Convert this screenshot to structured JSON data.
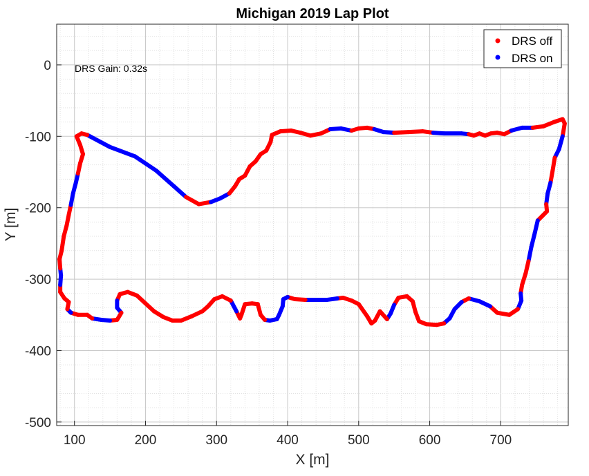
{
  "chart_data": {
    "type": "scatter",
    "title": "Michigan 2019 Lap Plot",
    "xlabel": "X [m]",
    "ylabel": "Y [m]",
    "xlim": [
      75,
      795
    ],
    "ylim": [
      -505,
      57
    ],
    "xticks": [
      100,
      200,
      300,
      400,
      500,
      600,
      700
    ],
    "yticks": [
      0,
      -100,
      -200,
      -300,
      -400,
      -500
    ],
    "grid": "major and minor",
    "legend_position": "top-right",
    "annotation": "DRS Gain: 0.32s",
    "colors": {
      "off": "#ff0000",
      "on": "#0000ff"
    },
    "series": [
      {
        "name": "DRS off",
        "color": "#ff0000"
      },
      {
        "name": "DRS on",
        "color": "#0000ff"
      }
    ],
    "track": [
      {
        "x": 118,
        "y": -98,
        "drs": "on"
      },
      {
        "x": 150,
        "y": -115,
        "drs": "on"
      },
      {
        "x": 185,
        "y": -128,
        "drs": "on"
      },
      {
        "x": 215,
        "y": -148,
        "drs": "on"
      },
      {
        "x": 240,
        "y": -170,
        "drs": "on"
      },
      {
        "x": 257,
        "y": -185,
        "drs": "off"
      },
      {
        "x": 275,
        "y": -195,
        "drs": "off"
      },
      {
        "x": 292,
        "y": -192,
        "drs": "on"
      },
      {
        "x": 305,
        "y": -187,
        "drs": "on"
      },
      {
        "x": 318,
        "y": -180,
        "drs": "off"
      },
      {
        "x": 326,
        "y": -170,
        "drs": "off"
      },
      {
        "x": 332,
        "y": -160,
        "drs": "off"
      },
      {
        "x": 340,
        "y": -155,
        "drs": "off"
      },
      {
        "x": 347,
        "y": -142,
        "drs": "off"
      },
      {
        "x": 355,
        "y": -135,
        "drs": "off"
      },
      {
        "x": 362,
        "y": -125,
        "drs": "off"
      },
      {
        "x": 370,
        "y": -120,
        "drs": "off"
      },
      {
        "x": 376,
        "y": -108,
        "drs": "off"
      },
      {
        "x": 378,
        "y": -98,
        "drs": "off"
      },
      {
        "x": 390,
        "y": -93,
        "drs": "off"
      },
      {
        "x": 405,
        "y": -92,
        "drs": "off"
      },
      {
        "x": 418,
        "y": -95,
        "drs": "off"
      },
      {
        "x": 432,
        "y": -99,
        "drs": "off"
      },
      {
        "x": 447,
        "y": -96,
        "drs": "off"
      },
      {
        "x": 460,
        "y": -90,
        "drs": "on"
      },
      {
        "x": 475,
        "y": -89,
        "drs": "on"
      },
      {
        "x": 490,
        "y": -92,
        "drs": "off"
      },
      {
        "x": 500,
        "y": -89,
        "drs": "off"
      },
      {
        "x": 512,
        "y": -88,
        "drs": "off"
      },
      {
        "x": 522,
        "y": -90,
        "drs": "on"
      },
      {
        "x": 535,
        "y": -94,
        "drs": "on"
      },
      {
        "x": 550,
        "y": -95,
        "drs": "off"
      },
      {
        "x": 570,
        "y": -94,
        "drs": "off"
      },
      {
        "x": 590,
        "y": -93,
        "drs": "off"
      },
      {
        "x": 605,
        "y": -95,
        "drs": "on"
      },
      {
        "x": 620,
        "y": -96,
        "drs": "on"
      },
      {
        "x": 645,
        "y": -96,
        "drs": "on"
      },
      {
        "x": 655,
        "y": -97,
        "drs": "off"
      },
      {
        "x": 662,
        "y": -99,
        "drs": "off"
      },
      {
        "x": 670,
        "y": -96,
        "drs": "off"
      },
      {
        "x": 678,
        "y": -99,
        "drs": "off"
      },
      {
        "x": 686,
        "y": -96,
        "drs": "off"
      },
      {
        "x": 695,
        "y": -95,
        "drs": "off"
      },
      {
        "x": 705,
        "y": -97,
        "drs": "off"
      },
      {
        "x": 715,
        "y": -92,
        "drs": "on"
      },
      {
        "x": 730,
        "y": -88,
        "drs": "on"
      },
      {
        "x": 745,
        "y": -88,
        "drs": "off"
      },
      {
        "x": 760,
        "y": -86,
        "drs": "off"
      },
      {
        "x": 775,
        "y": -80,
        "drs": "off"
      },
      {
        "x": 787,
        "y": -76,
        "drs": "off"
      },
      {
        "x": 790,
        "y": -82,
        "drs": "off"
      },
      {
        "x": 787,
        "y": -100,
        "drs": "on"
      },
      {
        "x": 782,
        "y": -118,
        "drs": "on"
      },
      {
        "x": 776,
        "y": -130,
        "drs": "off"
      },
      {
        "x": 773,
        "y": -148,
        "drs": "off"
      },
      {
        "x": 770,
        "y": -165,
        "drs": "on"
      },
      {
        "x": 766,
        "y": -180,
        "drs": "on"
      },
      {
        "x": 764,
        "y": -195,
        "drs": "off"
      },
      {
        "x": 765,
        "y": -205,
        "drs": "off"
      },
      {
        "x": 758,
        "y": -212,
        "drs": "off"
      },
      {
        "x": 752,
        "y": -218,
        "drs": "on"
      },
      {
        "x": 748,
        "y": -235,
        "drs": "on"
      },
      {
        "x": 743,
        "y": -255,
        "drs": "on"
      },
      {
        "x": 739,
        "y": -275,
        "drs": "off"
      },
      {
        "x": 735,
        "y": -292,
        "drs": "off"
      },
      {
        "x": 730,
        "y": -308,
        "drs": "off"
      },
      {
        "x": 728,
        "y": -320,
        "drs": "on"
      },
      {
        "x": 729,
        "y": -330,
        "drs": "on"
      },
      {
        "x": 724,
        "y": -342,
        "drs": "off"
      },
      {
        "x": 712,
        "y": -350,
        "drs": "off"
      },
      {
        "x": 695,
        "y": -347,
        "drs": "off"
      },
      {
        "x": 685,
        "y": -338,
        "drs": "on"
      },
      {
        "x": 670,
        "y": -331,
        "drs": "on"
      },
      {
        "x": 655,
        "y": -327,
        "drs": "off"
      },
      {
        "x": 645,
        "y": -332,
        "drs": "on"
      },
      {
        "x": 635,
        "y": -342,
        "drs": "on"
      },
      {
        "x": 628,
        "y": -355,
        "drs": "on"
      },
      {
        "x": 620,
        "y": -362,
        "drs": "off"
      },
      {
        "x": 610,
        "y": -364,
        "drs": "off"
      },
      {
        "x": 595,
        "y": -363,
        "drs": "off"
      },
      {
        "x": 585,
        "y": -359,
        "drs": "off"
      },
      {
        "x": 580,
        "y": -346,
        "drs": "off"
      },
      {
        "x": 576,
        "y": -331,
        "drs": "off"
      },
      {
        "x": 568,
        "y": -324,
        "drs": "off"
      },
      {
        "x": 556,
        "y": -326,
        "drs": "off"
      },
      {
        "x": 550,
        "y": -336,
        "drs": "on"
      },
      {
        "x": 545,
        "y": -348,
        "drs": "on"
      },
      {
        "x": 540,
        "y": -356,
        "drs": "off"
      },
      {
        "x": 530,
        "y": -345,
        "drs": "off"
      },
      {
        "x": 523,
        "y": -358,
        "drs": "off"
      },
      {
        "x": 518,
        "y": -362,
        "drs": "off"
      },
      {
        "x": 512,
        "y": -352,
        "drs": "off"
      },
      {
        "x": 500,
        "y": -335,
        "drs": "off"
      },
      {
        "x": 490,
        "y": -330,
        "drs": "off"
      },
      {
        "x": 478,
        "y": -326,
        "drs": "off"
      },
      {
        "x": 470,
        "y": -327,
        "drs": "on"
      },
      {
        "x": 455,
        "y": -329,
        "drs": "on"
      },
      {
        "x": 438,
        "y": -329,
        "drs": "on"
      },
      {
        "x": 425,
        "y": -329,
        "drs": "off"
      },
      {
        "x": 410,
        "y": -328,
        "drs": "off"
      },
      {
        "x": 400,
        "y": -325,
        "drs": "on"
      },
      {
        "x": 394,
        "y": -328,
        "drs": "on"
      },
      {
        "x": 393,
        "y": -338,
        "drs": "on"
      },
      {
        "x": 388,
        "y": -350,
        "drs": "on"
      },
      {
        "x": 385,
        "y": -356,
        "drs": "on"
      },
      {
        "x": 375,
        "y": -358,
        "drs": "on"
      },
      {
        "x": 368,
        "y": -357,
        "drs": "off"
      },
      {
        "x": 362,
        "y": -350,
        "drs": "off"
      },
      {
        "x": 358,
        "y": -335,
        "drs": "off"
      },
      {
        "x": 350,
        "y": -334,
        "drs": "off"
      },
      {
        "x": 340,
        "y": -335,
        "drs": "off"
      },
      {
        "x": 335,
        "y": -350,
        "drs": "off"
      },
      {
        "x": 333,
        "y": -355,
        "drs": "off"
      },
      {
        "x": 328,
        "y": -345,
        "drs": "on"
      },
      {
        "x": 320,
        "y": -330,
        "drs": "off"
      },
      {
        "x": 308,
        "y": -324,
        "drs": "off"
      },
      {
        "x": 297,
        "y": -328,
        "drs": "off"
      },
      {
        "x": 288,
        "y": -338,
        "drs": "off"
      },
      {
        "x": 280,
        "y": -345,
        "drs": "off"
      },
      {
        "x": 265,
        "y": -352,
        "drs": "off"
      },
      {
        "x": 250,
        "y": -358,
        "drs": "off"
      },
      {
        "x": 238,
        "y": -358,
        "drs": "off"
      },
      {
        "x": 225,
        "y": -353,
        "drs": "off"
      },
      {
        "x": 212,
        "y": -345,
        "drs": "off"
      },
      {
        "x": 200,
        "y": -334,
        "drs": "off"
      },
      {
        "x": 188,
        "y": -323,
        "drs": "off"
      },
      {
        "x": 175,
        "y": -318,
        "drs": "off"
      },
      {
        "x": 164,
        "y": -321,
        "drs": "off"
      },
      {
        "x": 160,
        "y": -330,
        "drs": "on"
      },
      {
        "x": 160,
        "y": -340,
        "drs": "on"
      },
      {
        "x": 166,
        "y": -347,
        "drs": "off"
      },
      {
        "x": 160,
        "y": -357,
        "drs": "off"
      },
      {
        "x": 150,
        "y": -358,
        "drs": "on"
      },
      {
        "x": 138,
        "y": -357,
        "drs": "on"
      },
      {
        "x": 125,
        "y": -355,
        "drs": "off"
      },
      {
        "x": 118,
        "y": -350,
        "drs": "off"
      },
      {
        "x": 105,
        "y": -350,
        "drs": "off"
      },
      {
        "x": 95,
        "y": -347,
        "drs": "on"
      },
      {
        "x": 90,
        "y": -342,
        "drs": "off"
      },
      {
        "x": 92,
        "y": -332,
        "drs": "off"
      },
      {
        "x": 86,
        "y": -327,
        "drs": "off"
      },
      {
        "x": 80,
        "y": -318,
        "drs": "off"
      },
      {
        "x": 80,
        "y": -308,
        "drs": "on"
      },
      {
        "x": 81,
        "y": -295,
        "drs": "on"
      },
      {
        "x": 80,
        "y": -285,
        "drs": "off"
      },
      {
        "x": 79,
        "y": -272,
        "drs": "off"
      },
      {
        "x": 82,
        "y": -260,
        "drs": "off"
      },
      {
        "x": 85,
        "y": -240,
        "drs": "off"
      },
      {
        "x": 89,
        "y": -225,
        "drs": "off"
      },
      {
        "x": 92,
        "y": -210,
        "drs": "off"
      },
      {
        "x": 95,
        "y": -196,
        "drs": "on"
      },
      {
        "x": 98,
        "y": -180,
        "drs": "on"
      },
      {
        "x": 102,
        "y": -165,
        "drs": "on"
      },
      {
        "x": 105,
        "y": -152,
        "drs": "off"
      },
      {
        "x": 108,
        "y": -138,
        "drs": "off"
      },
      {
        "x": 112,
        "y": -125,
        "drs": "off"
      },
      {
        "x": 108,
        "y": -112,
        "drs": "off"
      },
      {
        "x": 103,
        "y": -100,
        "drs": "off"
      },
      {
        "x": 110,
        "y": -96,
        "drs": "off"
      },
      {
        "x": 118,
        "y": -98,
        "drs": "on"
      }
    ]
  }
}
